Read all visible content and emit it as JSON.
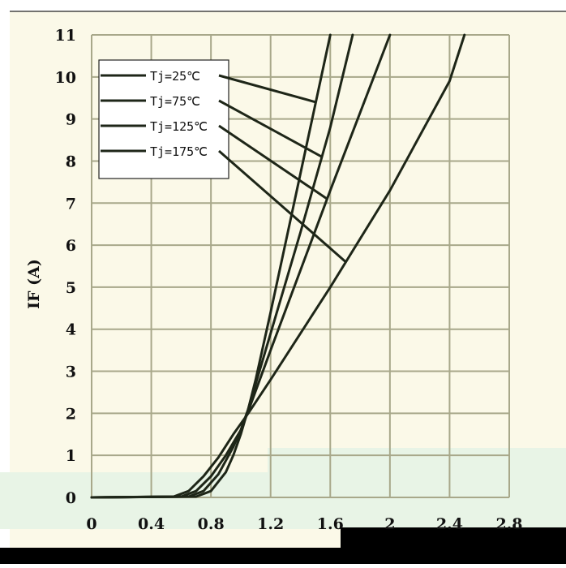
{
  "chart_data": {
    "type": "line",
    "ylabel": "IF (A)",
    "xlabel": "",
    "xlim": [
      0,
      2.8
    ],
    "ylim": [
      0,
      11
    ],
    "x_ticks": [
      "0",
      "0.4",
      "0.8",
      "1.2",
      "1.6",
      "2",
      "2.4",
      "2.8"
    ],
    "y_ticks": [
      "0",
      "1",
      "2",
      "3",
      "4",
      "5",
      "6",
      "7",
      "8",
      "9",
      "10",
      "11"
    ],
    "grid": true,
    "legend_position": "top-left",
    "series": [
      {
        "name": "Tj=25℃",
        "x": [
          0,
          0.7,
          0.8,
          0.9,
          0.95,
          1.0,
          1.05,
          1.1,
          1.2,
          1.4,
          1.6
        ],
        "y": [
          0,
          0.02,
          0.15,
          0.6,
          1.0,
          1.5,
          2.1,
          2.8,
          4.4,
          7.7,
          11
        ]
      },
      {
        "name": "Tj=75℃",
        "x": [
          0,
          0.65,
          0.75,
          0.85,
          0.95,
          1.0,
          1.05,
          1.2,
          1.4,
          1.6,
          1.75
        ],
        "y": [
          0,
          0.02,
          0.15,
          0.55,
          1.2,
          1.6,
          2.1,
          3.9,
          6.3,
          8.8,
          11
        ]
      },
      {
        "name": "Tj=125℃",
        "x": [
          0,
          0.6,
          0.7,
          0.8,
          0.9,
          1.0,
          1.05,
          1.2,
          1.6,
          2.0
        ],
        "y": [
          0,
          0.02,
          0.15,
          0.5,
          1.0,
          1.6,
          2.05,
          3.5,
          7.3,
          11
        ]
      },
      {
        "name": "Tj=175℃",
        "x": [
          0,
          0.55,
          0.65,
          0.75,
          0.85,
          0.95,
          1.05,
          1.2,
          1.6,
          2.0,
          2.4,
          2.5
        ],
        "y": [
          0,
          0.02,
          0.15,
          0.5,
          0.95,
          1.5,
          2.0,
          2.8,
          5.0,
          7.3,
          9.9,
          11
        ]
      }
    ],
    "colors": {
      "plot_bg": "#fbf9e8",
      "grid": "#a8a88a",
      "curve": "#1e2618",
      "lower_band": "#e8f4e6"
    }
  }
}
